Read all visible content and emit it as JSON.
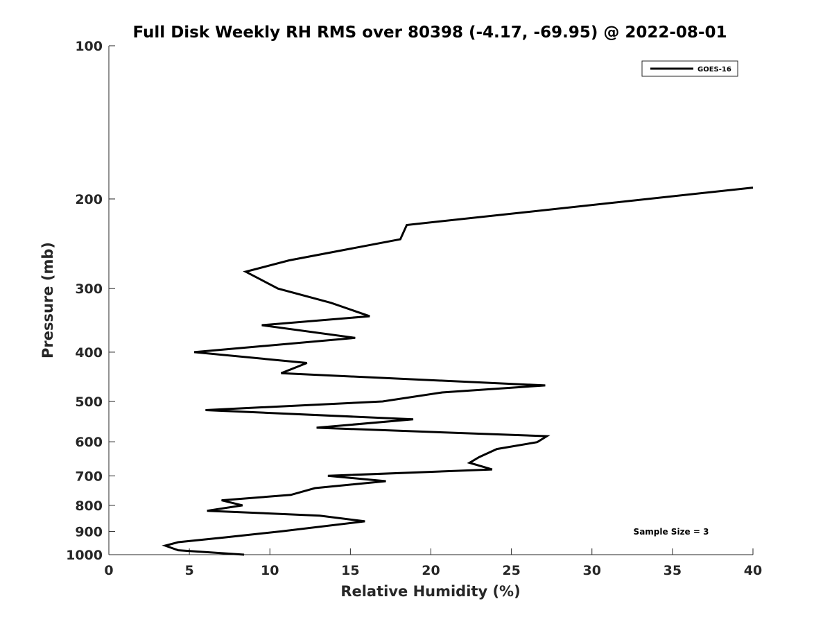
{
  "chart_data": {
    "type": "line",
    "title": "Full Disk Weekly RH RMS over 80398 (-4.17, -69.95) @ 2022-08-01",
    "xlabel": "Relative Humidity (%)",
    "ylabel": "Pressure (mb)",
    "xlim": [
      0,
      40
    ],
    "ylim": [
      100,
      1000
    ],
    "y_scale": "log",
    "y_direction": "reversed",
    "x_ticks": [
      0,
      5,
      10,
      15,
      20,
      25,
      30,
      35,
      40
    ],
    "x_tick_labels": [
      "0",
      "5",
      "10",
      "15",
      "20",
      "25",
      "30",
      "35",
      "40"
    ],
    "y_ticks": [
      100,
      200,
      300,
      400,
      500,
      600,
      700,
      800,
      900,
      1000
    ],
    "y_tick_labels": [
      "100",
      "200",
      "300",
      "400",
      "500",
      "600",
      "700",
      "800",
      "900",
      "1000"
    ],
    "grid": false,
    "legend_position": "top-right",
    "annotation": "Sample Size = 3",
    "series": [
      {
        "name": "GOES-16",
        "color": "#000000",
        "points": [
          {
            "x": 40.0,
            "y": 190
          },
          {
            "x": 18.5,
            "y": 225
          },
          {
            "x": 18.1,
            "y": 240
          },
          {
            "x": 11.2,
            "y": 264
          },
          {
            "x": 8.5,
            "y": 278
          },
          {
            "x": 10.5,
            "y": 300
          },
          {
            "x": 13.8,
            "y": 320
          },
          {
            "x": 16.2,
            "y": 340
          },
          {
            "x": 9.5,
            "y": 354
          },
          {
            "x": 15.3,
            "y": 375
          },
          {
            "x": 5.3,
            "y": 400
          },
          {
            "x": 12.3,
            "y": 420
          },
          {
            "x": 10.7,
            "y": 440
          },
          {
            "x": 27.1,
            "y": 465
          },
          {
            "x": 20.7,
            "y": 480
          },
          {
            "x": 17.0,
            "y": 500
          },
          {
            "x": 6.0,
            "y": 520
          },
          {
            "x": 18.9,
            "y": 542
          },
          {
            "x": 12.9,
            "y": 563
          },
          {
            "x": 27.2,
            "y": 585
          },
          {
            "x": 26.6,
            "y": 601
          },
          {
            "x": 24.1,
            "y": 620
          },
          {
            "x": 23.0,
            "y": 643
          },
          {
            "x": 22.4,
            "y": 660
          },
          {
            "x": 23.8,
            "y": 680
          },
          {
            "x": 13.6,
            "y": 700
          },
          {
            "x": 17.2,
            "y": 717
          },
          {
            "x": 12.8,
            "y": 740
          },
          {
            "x": 11.3,
            "y": 763
          },
          {
            "x": 7.0,
            "y": 782
          },
          {
            "x": 8.3,
            "y": 800
          },
          {
            "x": 6.1,
            "y": 820
          },
          {
            "x": 13.1,
            "y": 838
          },
          {
            "x": 15.9,
            "y": 860
          },
          {
            "x": 10.7,
            "y": 900
          },
          {
            "x": 7.2,
            "y": 925
          },
          {
            "x": 4.3,
            "y": 945
          },
          {
            "x": 3.5,
            "y": 960
          },
          {
            "x": 4.3,
            "y": 980
          },
          {
            "x": 8.4,
            "y": 1000
          }
        ]
      }
    ]
  }
}
